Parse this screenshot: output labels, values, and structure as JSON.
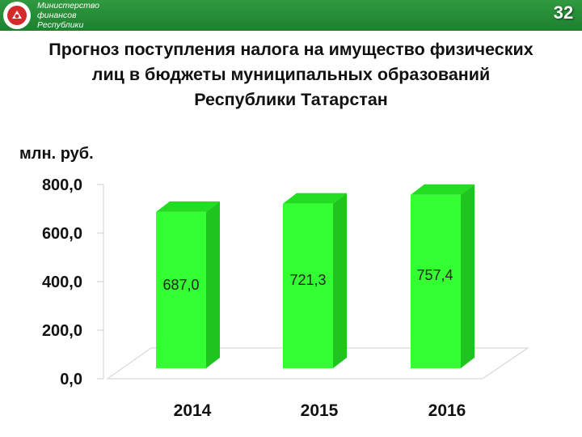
{
  "header": {
    "ministry_lines": [
      "Министерство",
      "финансов",
      "Республики"
    ],
    "page_number": "32"
  },
  "title_lines": [
    "Прогноз поступления налога на имущество физических",
    "лиц в бюджеты муниципальных образований",
    "Республики Татарстан"
  ],
  "colors": {
    "header": "#2f9a3f",
    "bar_front": "#33ff33",
    "bar_side": "#1fc41f",
    "bar_top": "#22dd22"
  },
  "chart_data": {
    "type": "bar",
    "style": "3d",
    "title": "Прогноз поступления налога на имущество физических лиц в бюджеты муниципальных образований Республики Татарстан",
    "ylabel": "млн. руб.",
    "xlabel": "",
    "categories": [
      "2014",
      "2015",
      "2016"
    ],
    "values": [
      687.0,
      721.3,
      757.4
    ],
    "data_labels": [
      "687,0",
      "721,3",
      "757,4"
    ],
    "yticks": [
      "0,0",
      "200,0",
      "400,0",
      "600,0",
      "800,0"
    ],
    "ytick_values": [
      0,
      200,
      400,
      600,
      800
    ],
    "ylim": [
      0,
      800
    ],
    "grid": false,
    "legend": "none"
  }
}
